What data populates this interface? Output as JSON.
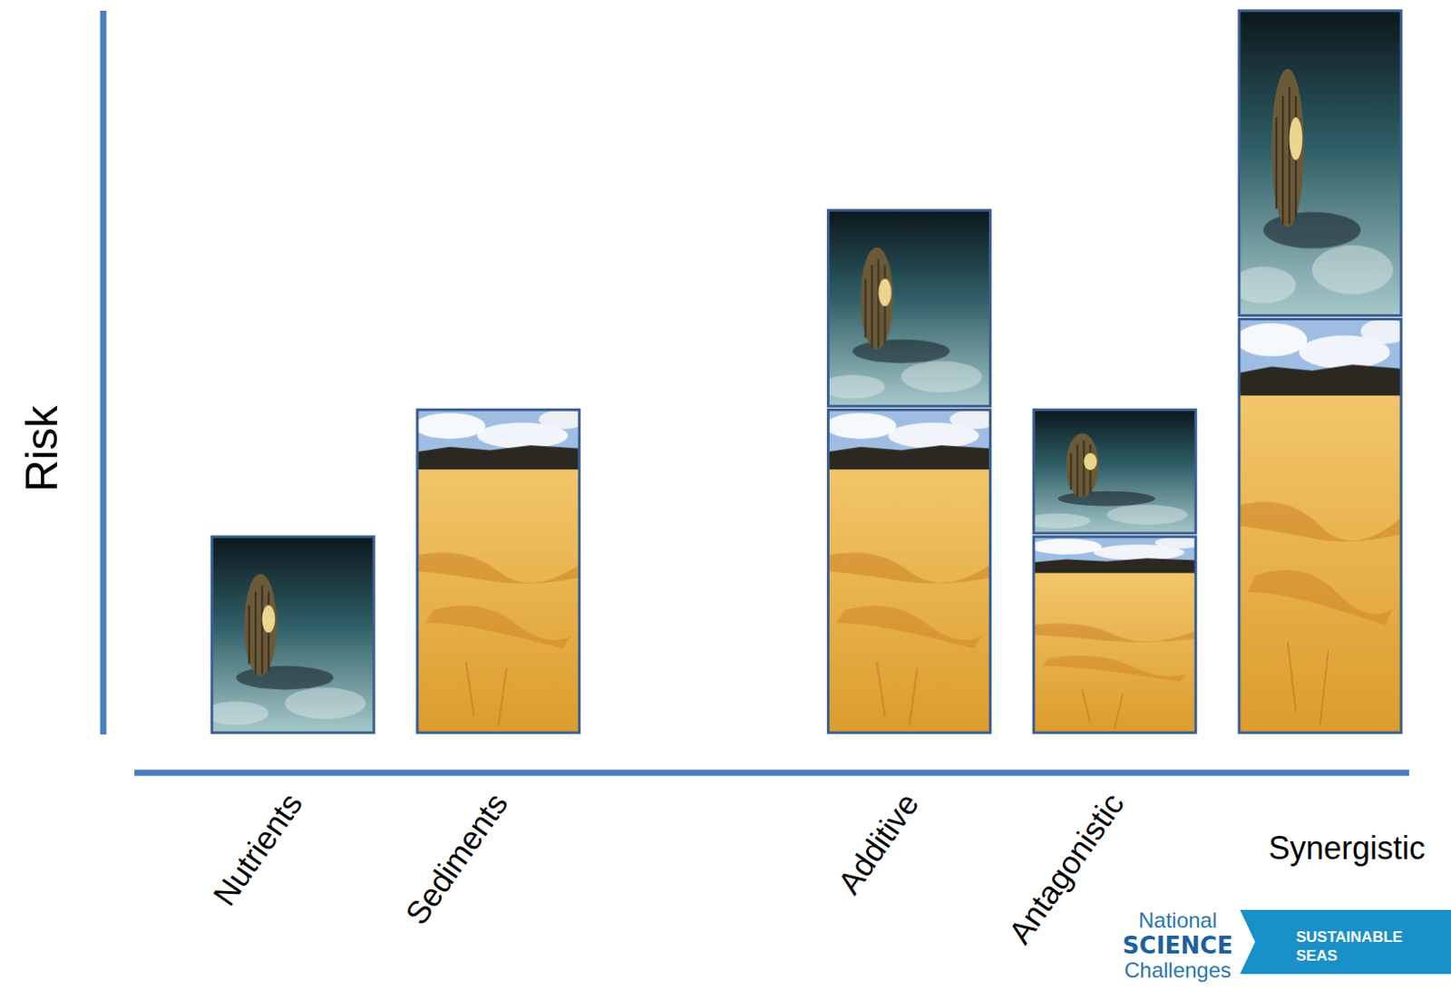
{
  "chart_data": {
    "type": "bar",
    "stacked": true,
    "y_label": "Risk",
    "categories": [
      "Nutrients",
      "Sediments",
      null,
      "Additive",
      "Antagonistic",
      "Synergistic"
    ],
    "series": [
      {
        "color": "#e3a93a",
        "values": [
          null,
          3.6,
          null,
          3.6,
          2.2,
          4.6
        ]
      },
      {
        "color": "#3f7f86",
        "values": [
          2.2,
          null,
          null,
          2.2,
          1.4,
          3.4
        ]
      }
    ],
    "ylim": [
      0,
      8
    ],
    "yticks": [],
    "tick_labels": false,
    "grid": false
  },
  "logo": {
    "line1": "National",
    "line2": "SCIENCE",
    "line3": "Challenges",
    "badge": [
      "SUSTAINABLE",
      "SEAS"
    ]
  }
}
